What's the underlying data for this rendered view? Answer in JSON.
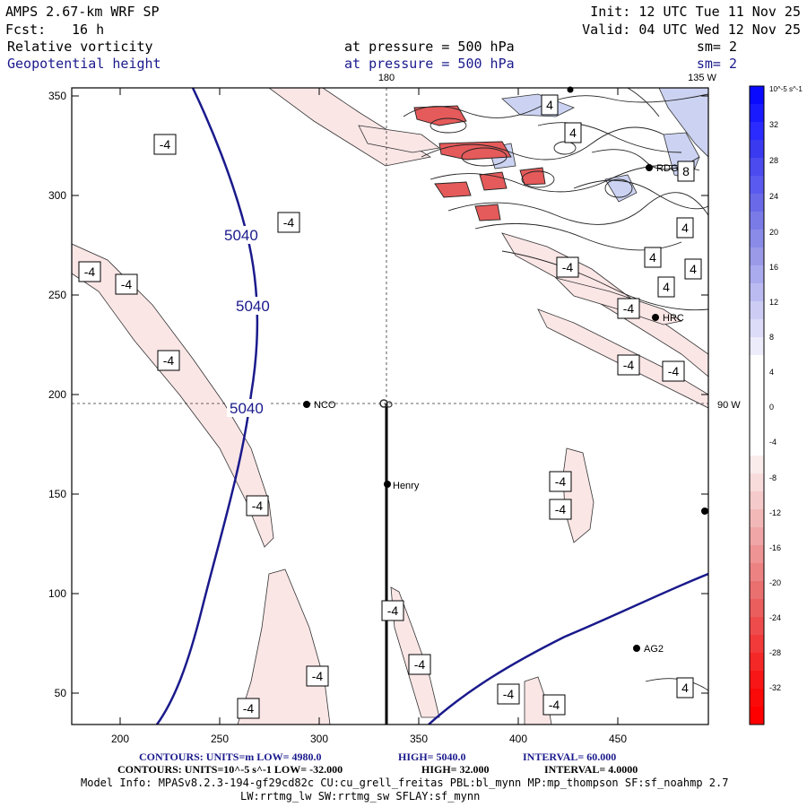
{
  "header": {
    "model": "AMPS 2.67-km WRF SP",
    "fcst_label": "Fcst:",
    "fcst_value": "16 h",
    "init": "Init: 12 UTC Tue 11 Nov 25",
    "valid": "Valid: 04 UTC Wed 12 Nov 25",
    "field1_name": "Relative vorticity",
    "field1_level": "at pressure =  500 hPa",
    "field1_sm": "sm= 2",
    "field2_name": "Geopotential height",
    "field2_level": "at pressure =  500 hPa",
    "field2_sm": "sm= 2"
  },
  "meridians": {
    "top_label": "180",
    "top_right_label": "135 W",
    "right_label": "90 W"
  },
  "axes": {
    "x_ticks": [
      "200",
      "250",
      "300",
      "350",
      "400",
      "450"
    ],
    "y_ticks": [
      "350",
      "300",
      "250",
      "200",
      "150",
      "100",
      "50"
    ]
  },
  "stations": [
    {
      "name": "RDG"
    },
    {
      "name": "HRC"
    },
    {
      "name": "NCO"
    },
    {
      "name": "Henry"
    },
    {
      "name": "AG2"
    }
  ],
  "height_labels": [
    "5040",
    "5040",
    "5040"
  ],
  "vort_labels": {
    "neg": "-4",
    "pos4": "4",
    "pos8": "8"
  },
  "colorbar": {
    "unit": "10^-5 s^-1",
    "labels": [
      "32",
      "28",
      "24",
      "20",
      "16",
      "12",
      "8",
      "4",
      "0",
      "-4",
      "-8",
      "-12",
      "-16",
      "-20",
      "-24",
      "-28",
      "-32"
    ]
  },
  "footer": {
    "line1_a": "CONTOURS:  UNITS=m  LOW=  4980.0",
    "line1_b": "HIGH=  5040.0",
    "line1_c": "INTERVAL=   60.000",
    "line2_a": "CONTOURS:  UNITS=10^-5 s^-1  LOW=  -32.000",
    "line2_b": "HIGH=  32.000",
    "line2_c": "INTERVAL=   4.0000",
    "line3": "Model Info: MPASv8.2.3-194-gf29cd82c CU:cu_grell_freitas PBL:bl_mynn MP:mp_thompson SF:sf_noahmp 2.7",
    "line4": "LW:rrtmg_lw SW:rrtmg_sw SFLAY:sf_mynn"
  },
  "colors": {
    "navy": "#1a1a8c",
    "neg_fill": "#fbe6e6",
    "pos_fill": "#ccd3f2"
  }
}
